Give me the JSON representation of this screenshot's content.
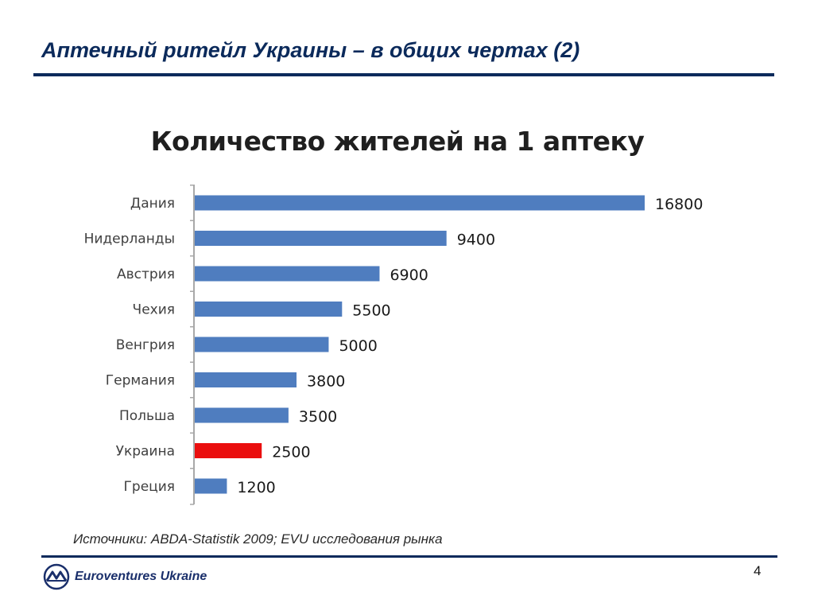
{
  "slide": {
    "title": "Аптечный ритейл Украины – в общих чертах (2)",
    "source": "Источники: ABDA-Statistik 2009; EVU исследования рынка",
    "company": "Euroventures Ukraine",
    "page_number": "4"
  },
  "colors": {
    "bar": "#4f7dbf",
    "highlight": "#ea0e0e",
    "title_blue": "#0b2a5b"
  },
  "icons": {
    "logo": "euroventures-logo-icon"
  },
  "chart_data": {
    "type": "bar",
    "orientation": "horizontal",
    "title": "Количество жителей на 1 аптеку",
    "categories": [
      "Дания",
      "Нидерланды",
      "Австрия",
      "Чехия",
      "Венгрия",
      "Германия",
      "Польша",
      "Украина",
      "Греция"
    ],
    "values": [
      16800,
      9400,
      6900,
      5500,
      5000,
      3800,
      3500,
      2500,
      1200
    ],
    "value_labels": [
      "16800",
      "9400",
      "6900",
      "5500",
      "5000",
      "3800",
      "3500",
      "2500",
      "1200"
    ],
    "highlight_category": "Украина",
    "xlim": [
      0,
      16800
    ],
    "grid": false,
    "legend": "none"
  }
}
